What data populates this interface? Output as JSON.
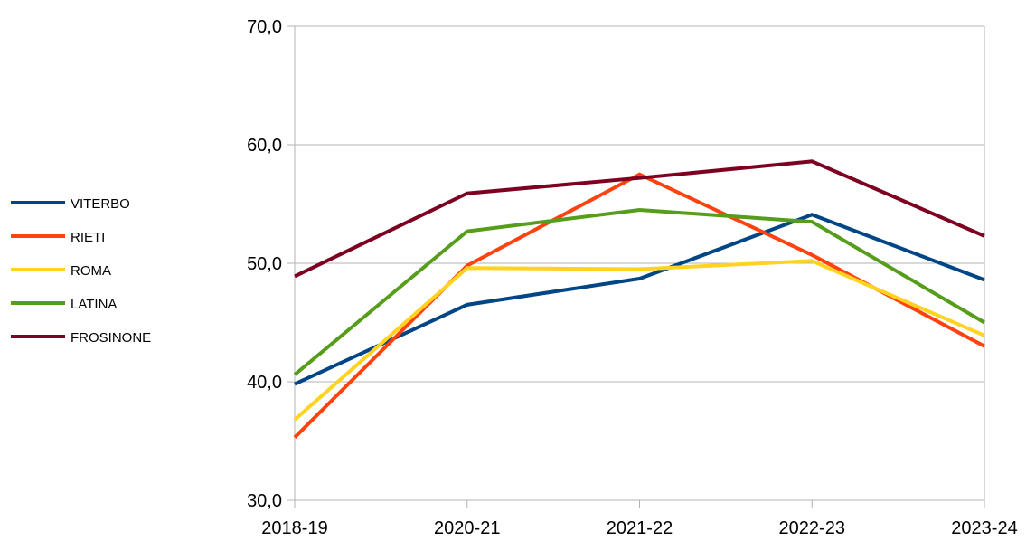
{
  "chart_data": {
    "type": "line",
    "title": "",
    "xlabel": "",
    "ylabel": "",
    "categories": [
      "2018-19",
      "2020-21",
      "2021-22",
      "2022-23",
      "2023-24"
    ],
    "ylim": [
      30,
      70
    ],
    "yticks": [
      "30,0",
      "40,0",
      "50,0",
      "60,0",
      "70,0"
    ],
    "ytick_values": [
      30,
      40,
      50,
      60,
      70
    ],
    "grid": "horizontal",
    "legend_position": "left",
    "series": [
      {
        "name": "VITERBO",
        "color": "#004586",
        "values": [
          39.8,
          46.5,
          48.7,
          54.1,
          48.6
        ]
      },
      {
        "name": "RIETI",
        "color": "#ff420e",
        "values": [
          35.3,
          49.8,
          57.5,
          50.7,
          43.0
        ]
      },
      {
        "name": "ROMA",
        "color": "#ffd320",
        "values": [
          36.8,
          49.6,
          49.5,
          50.2,
          43.9
        ]
      },
      {
        "name": "LATINA",
        "color": "#579d1c",
        "values": [
          40.6,
          52.7,
          54.5,
          53.5,
          45.0
        ]
      },
      {
        "name": "FROSINONE",
        "color": "#7e0021",
        "values": [
          48.9,
          55.9,
          57.2,
          58.6,
          52.3
        ]
      }
    ]
  }
}
